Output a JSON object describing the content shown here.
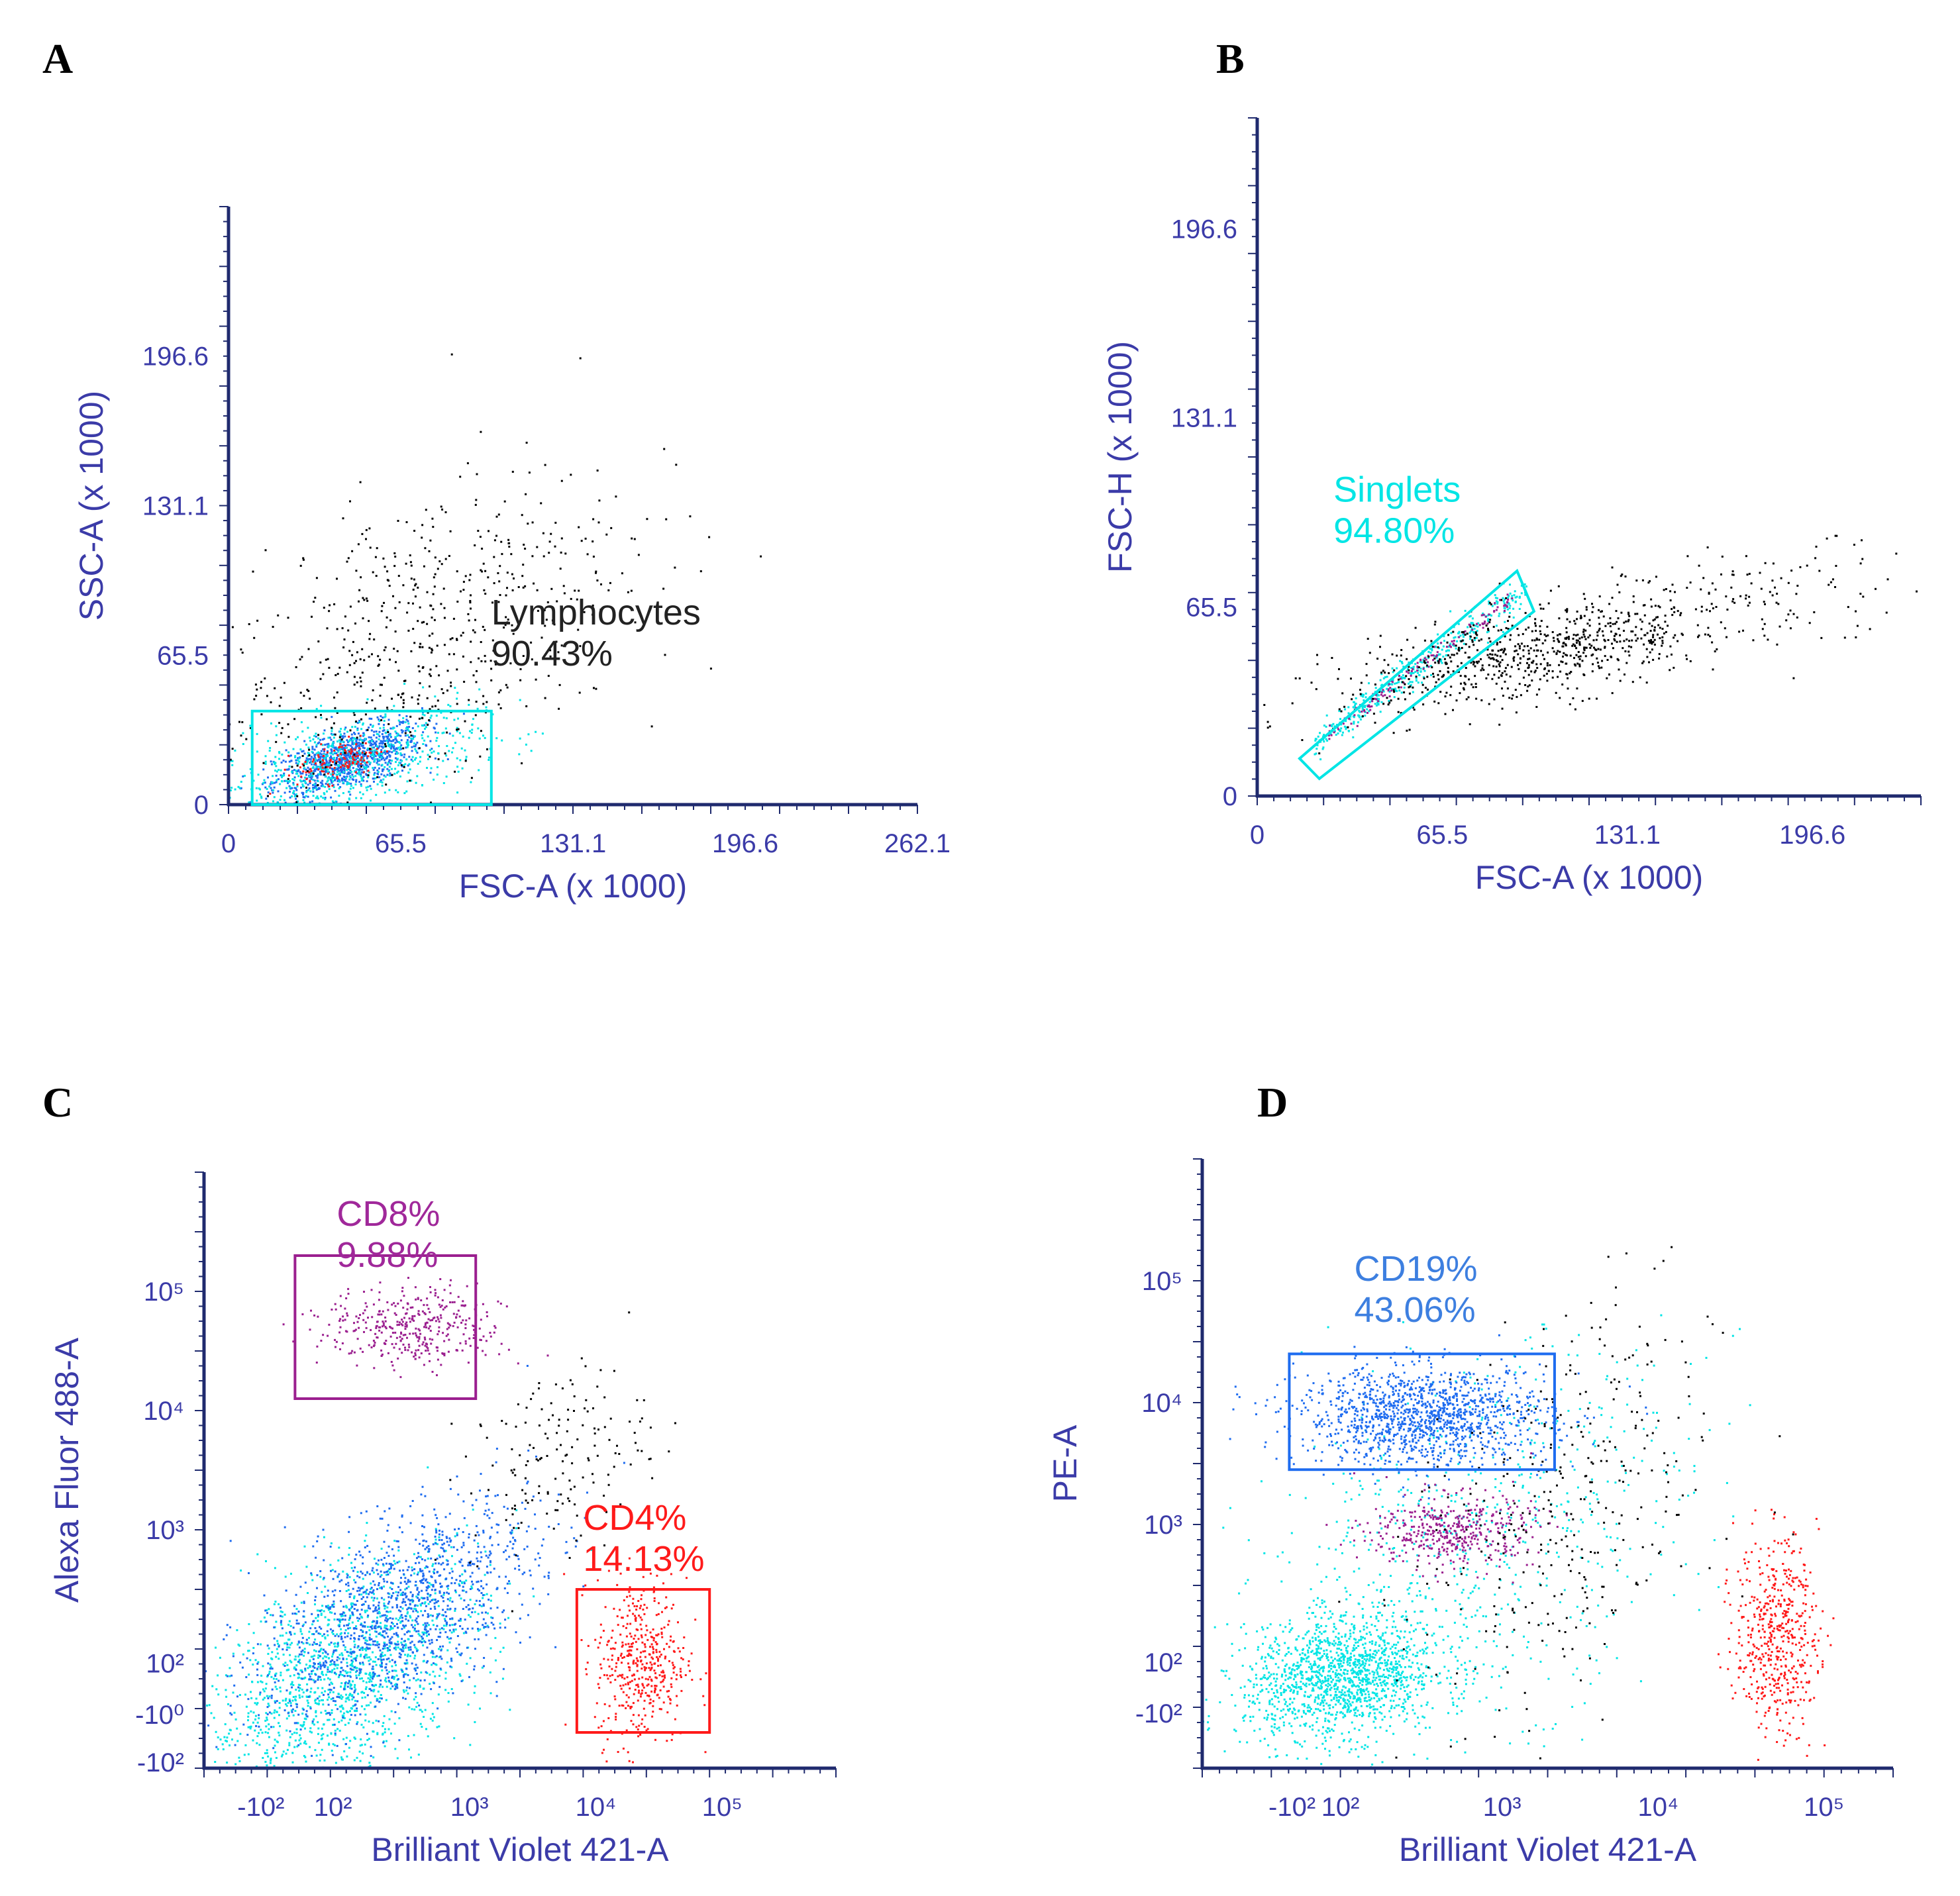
{
  "colors": {
    "axis": "#1f2a6e",
    "tick_text": "#3b3ba8",
    "cyan": "#00e5e5",
    "blue": "#1e6cf0",
    "purple": "#9b1f8f",
    "red": "#ff1a1a",
    "black": "#000000",
    "magenta": "#d4148c"
  },
  "panels": [
    {
      "letter": "A"
    },
    {
      "letter": "B"
    },
    {
      "letter": "C"
    },
    {
      "letter": "D"
    }
  ],
  "chart_data": [
    {
      "id": "A",
      "type": "scatter",
      "title": "",
      "xlabel": "FSC-A (x 1000)",
      "ylabel": "SSC-A (x 1000)",
      "xlim": [
        0,
        262.1
      ],
      "ylim": [
        0,
        262.1
      ],
      "xticks": [
        0,
        65.5,
        131.1,
        196.6,
        262.1
      ],
      "xtick_labels": [
        "0",
        "65.5",
        "131.1",
        "196.6",
        "262.1"
      ],
      "yticks": [
        0,
        65.5,
        131.1,
        196.6
      ],
      "ytick_labels": [
        "0",
        "65.5",
        "131.1",
        "196.6"
      ],
      "populations": [
        {
          "name": "lymphocytes-core",
          "color": "blue",
          "n": 900,
          "cx": 45,
          "cy": 20,
          "sx": 14,
          "sy": 8,
          "rho": 0.6
        },
        {
          "name": "lymphocytes-spread",
          "color": "cyan",
          "n": 700,
          "cx": 45,
          "cy": 18,
          "sx": 25,
          "sy": 12,
          "rho": 0.5
        },
        {
          "name": "lymphocytes-dense",
          "color": "red",
          "n": 120,
          "cx": 42,
          "cy": 20,
          "sx": 8,
          "sy": 5,
          "rho": 0.5
        },
        {
          "name": "other-events",
          "color": "black",
          "n": 650,
          "cx": 70,
          "cy": 70,
          "sx": 40,
          "sy": 40,
          "rho": 0.55
        }
      ],
      "gates": [
        {
          "name": "Lymphocytes",
          "percent": "90.43%",
          "label_line1": "Lymphocytes",
          "label_line2": "90.43%",
          "shape": "rect",
          "x0": 9,
          "x1": 100,
          "y0": 0,
          "y1": 41,
          "color": "cyan",
          "label_x": 100,
          "label_y": 79,
          "label_color": "#222222"
        }
      ]
    },
    {
      "id": "B",
      "type": "scatter",
      "title": "",
      "xlabel": "FSC-A (x 1000)",
      "ylabel": "FSC-H (x 1000)",
      "xlim": [
        0,
        235
      ],
      "ylim": [
        0,
        235
      ],
      "xticks": [
        0,
        65.5,
        131.1,
        196.6
      ],
      "xtick_labels": [
        "0",
        "65.5",
        "131.1",
        "196.6"
      ],
      "yticks": [
        0,
        65.5,
        131.1,
        196.6
      ],
      "ytick_labels": [
        "0",
        "65.5",
        "131.1",
        "196.6"
      ],
      "populations": [
        {
          "name": "singlets-diagonal",
          "color": "cyan",
          "n": 400,
          "line": true,
          "x0": 20,
          "x1": 95,
          "slope": 0.72,
          "intercept": 4,
          "jitter": 3
        },
        {
          "name": "singlets-core",
          "color": "purple",
          "n": 120,
          "line": true,
          "x0": 25,
          "x1": 90,
          "slope": 0.72,
          "intercept": 4,
          "jitter": 1.5
        },
        {
          "name": "doublets",
          "color": "black",
          "n": 800,
          "cx": 100,
          "cy": 50,
          "sx": 35,
          "sy": 10,
          "rho": 0.6
        },
        {
          "name": "doublets-tail",
          "color": "black",
          "n": 90,
          "cx": 185,
          "cy": 72,
          "sx": 28,
          "sy": 8,
          "rho": 0.2
        }
      ],
      "gates": [
        {
          "name": "Singlets",
          "percent": "94.80%",
          "label_line1": "Singlets",
          "label_line2": "94.80%",
          "shape": "polygon",
          "points": [
            [
              15,
              13
            ],
            [
              22,
              6
            ],
            [
              98,
              64
            ],
            [
              92,
              78
            ]
          ],
          "color": "cyan",
          "label_x": 27,
          "label_y": 102,
          "label_color": "#00e5e5"
        }
      ]
    },
    {
      "id": "C",
      "type": "scatter",
      "title": "",
      "xlabel": "Brilliant Violet 421-A",
      "ylabel": "Alexa Fluor 488-A",
      "xlim": [
        0,
        5
      ],
      "ylim": [
        0,
        5
      ],
      "xticks": [
        0.45,
        1.02,
        2.1,
        3.1,
        4.1
      ],
      "xtick_labels": [
        "-10²",
        "10²",
        "10³",
        "10⁴",
        "10⁵"
      ],
      "yticks": [
        0.05,
        0.45,
        0.88,
        2.0,
        3.0,
        4.0
      ],
      "ytick_labels": [
        "-10²",
        "-10⁰",
        "10²",
        "10³",
        "10⁴",
        "10⁵"
      ],
      "populations": [
        {
          "name": "background-cyan",
          "color": "cyan",
          "n": 1400,
          "cx": 1.1,
          "cy": 0.8,
          "sx": 0.55,
          "sy": 0.5,
          "rho": 0.5
        },
        {
          "name": "blue-cluster",
          "color": "blue",
          "n": 1300,
          "cx": 1.5,
          "cy": 1.3,
          "sx": 0.55,
          "sy": 0.45,
          "rho": 0.55
        },
        {
          "name": "cd8",
          "color": "purple",
          "n": 380,
          "cx": 1.65,
          "cy": 3.7,
          "sx": 0.35,
          "sy": 0.17,
          "rho": 0.0
        },
        {
          "name": "cd4",
          "color": "red",
          "n": 450,
          "cx": 3.45,
          "cy": 0.9,
          "sx": 0.18,
          "sy": 0.35,
          "rho": 0.0
        },
        {
          "name": "double-pos",
          "color": "black",
          "n": 160,
          "cx": 2.8,
          "cy": 2.6,
          "sx": 0.35,
          "sy": 0.4,
          "rho": 0.3
        }
      ],
      "gates": [
        {
          "name": "CD8",
          "percent": "9.88%",
          "label_line1": "CD8%",
          "label_line2": "9.88%",
          "shape": "rect",
          "x0": 0.72,
          "x1": 2.15,
          "y0": 3.1,
          "y1": 4.3,
          "color": "purple",
          "label_x": 1.05,
          "label_y": 4.55,
          "label_color": "#a0289a"
        },
        {
          "name": "CD4",
          "percent": "14.13%",
          "label_line1": "CD4%",
          "label_line2": "14.13%",
          "shape": "rect",
          "x0": 2.95,
          "x1": 4.0,
          "y0": 0.3,
          "y1": 1.5,
          "color": "red",
          "label_x": 3.0,
          "label_y": 2.0,
          "label_color": "#ff1a1a"
        }
      ]
    },
    {
      "id": "D",
      "type": "scatter",
      "title": "",
      "xlabel": "Brilliant Violet 421-A",
      "ylabel": "PE-A",
      "xlim": [
        0,
        5
      ],
      "ylim": [
        0,
        5
      ],
      "xticks": [
        0.65,
        1.0,
        2.17,
        3.3,
        4.5
      ],
      "xtick_labels": [
        "-10²",
        "10²",
        "10³",
        "10⁴",
        "10⁵"
      ],
      "yticks": [
        0.45,
        0.87,
        2.0,
        3.0,
        4.0
      ],
      "ytick_labels": [
        "-10²",
        "10²",
        "10³",
        "10⁴",
        "10⁵"
      ],
      "populations": [
        {
          "name": "background-cyan",
          "color": "cyan",
          "n": 1400,
          "cx": 1.0,
          "cy": 0.75,
          "sx": 0.35,
          "sy": 0.25,
          "rho": 0.2
        },
        {
          "name": "cyan-spread",
          "color": "cyan",
          "n": 700,
          "cx": 1.9,
          "cy": 1.8,
          "sx": 0.8,
          "sy": 0.8,
          "rho": 0.4
        },
        {
          "name": "cd19",
          "color": "blue",
          "n": 1300,
          "cx": 1.6,
          "cy": 2.9,
          "sx": 0.45,
          "sy": 0.2,
          "rho": 0.0
        },
        {
          "name": "purple",
          "color": "purple",
          "n": 420,
          "cx": 1.8,
          "cy": 1.95,
          "sx": 0.3,
          "sy": 0.15,
          "rho": 0.0
        },
        {
          "name": "red",
          "color": "red",
          "n": 520,
          "cx": 4.15,
          "cy": 1.1,
          "sx": 0.15,
          "sy": 0.4,
          "rho": 0.0
        },
        {
          "name": "black",
          "color": "black",
          "n": 330,
          "cx": 2.6,
          "cy": 2.1,
          "sx": 0.55,
          "sy": 0.85,
          "rho": 0.35
        }
      ],
      "gates": [
        {
          "name": "CD19",
          "percent": "43.06%",
          "label_line1": "CD19%",
          "label_line2": "43.06%",
          "shape": "rect",
          "x0": 0.63,
          "x1": 2.55,
          "y0": 2.45,
          "y1": 3.4,
          "color": "blue",
          "label_x": 1.1,
          "label_y": 4.0,
          "label_color": "#3d7fe0"
        }
      ]
    }
  ]
}
